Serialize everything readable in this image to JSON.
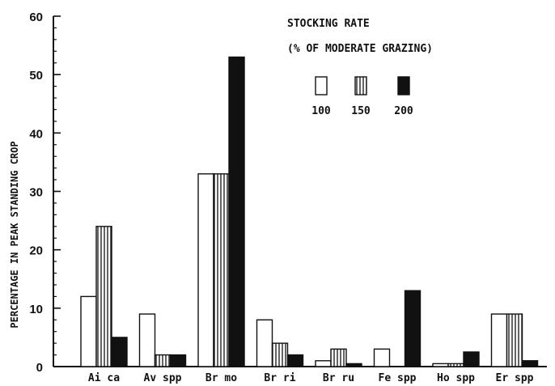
{
  "chart_data": {
    "type": "bar",
    "ylabel": "PERCENTAGE IN PEAK STANDING CROP",
    "ylim": [
      0,
      60
    ],
    "yticks": [
      "0",
      "10",
      "20",
      "30",
      "40",
      "50",
      "60"
    ],
    "categories": [
      "Ai ca",
      "Av spp",
      "Br mo",
      "Br ri",
      "Br ru",
      "Fe spp",
      "Ho spp",
      "Er spp"
    ],
    "legend_title_line1": "STOCKING RATE",
    "legend_title_line2": "(% OF MODERATE GRAZING)",
    "legend_placement": "top-right",
    "series": [
      {
        "name": "100",
        "fill": "white",
        "values": [
          12,
          9,
          33,
          8,
          1,
          3,
          0.5,
          9
        ]
      },
      {
        "name": "150",
        "fill": "vertical-stripes",
        "values": [
          24,
          2,
          33,
          4,
          3,
          0,
          0.5,
          9
        ]
      },
      {
        "name": "200",
        "fill": "black",
        "values": [
          5,
          2,
          53,
          2,
          0.5,
          13,
          2.5,
          1
        ]
      }
    ]
  }
}
